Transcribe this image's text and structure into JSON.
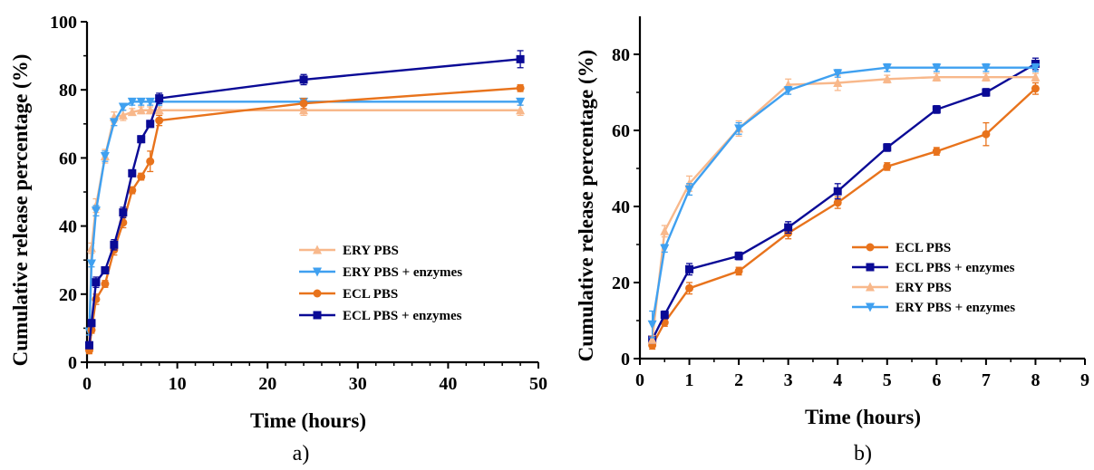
{
  "chart_data": [
    {
      "type": "line",
      "panel_label": "a)",
      "xlabel": "Time (hours)",
      "ylabel": "Cumulative release percentage (%)",
      "xlim": [
        0,
        50
      ],
      "ylim": [
        0,
        100
      ],
      "xticks": [
        0,
        10,
        20,
        30,
        40,
        50
      ],
      "yticks": [
        0,
        20,
        40,
        60,
        80,
        100
      ],
      "grid": false,
      "legend_position": "lower-right",
      "series": [
        {
          "name": "ERY PBS",
          "color": "#f8b88b",
          "marker": "triangle-up",
          "x": [
            0.25,
            0.5,
            1,
            2,
            3,
            4,
            5,
            6,
            7,
            8,
            24,
            48
          ],
          "y": [
            5,
            33.5,
            46,
            60.5,
            72,
            72.5,
            73.5,
            74,
            74,
            74,
            74,
            74
          ],
          "err": [
            1,
            1.5,
            2,
            2,
            1.5,
            1.5,
            1,
            1,
            1,
            1,
            1.5,
            1.5
          ]
        },
        {
          "name": "ERY PBS + enzymes",
          "color": "#3fa0f0",
          "marker": "triangle-down",
          "x": [
            0.25,
            0.5,
            1,
            2,
            3,
            4,
            5,
            6,
            7,
            8,
            24,
            48
          ],
          "y": [
            9,
            29,
            44.5,
            60.5,
            70.5,
            75,
            76.5,
            76.5,
            76.5,
            76.5,
            76.5,
            76.5
          ],
          "err": [
            1,
            1,
            1.5,
            1.5,
            1,
            1,
            1,
            1,
            1,
            1,
            1,
            1
          ]
        },
        {
          "name": "ECL PBS",
          "color": "#e8731c",
          "marker": "circle",
          "x": [
            0.25,
            0.5,
            1,
            2,
            3,
            4,
            5,
            6,
            7,
            8,
            24,
            48
          ],
          "y": [
            3.5,
            9.5,
            18.5,
            23,
            33,
            41,
            50.5,
            54.5,
            59,
            71,
            76,
            80.5
          ],
          "err": [
            1,
            1,
            1.5,
            1,
            1.5,
            1.5,
            1,
            1,
            3,
            1.5,
            1.5,
            1
          ]
        },
        {
          "name": "ECL PBS + enzymes",
          "color": "#0a0a96",
          "marker": "square",
          "x": [
            0.25,
            0.5,
            1,
            2,
            3,
            4,
            5,
            6,
            7,
            8,
            24,
            48
          ],
          "y": [
            5,
            11.5,
            23.5,
            27,
            34.5,
            44,
            55.5,
            65.5,
            70,
            77.5,
            83,
            89
          ],
          "err": [
            1,
            1,
            1.5,
            1,
            1.5,
            1.5,
            1,
            1,
            1,
            1.5,
            1.5,
            2.5
          ]
        }
      ]
    },
    {
      "type": "line",
      "panel_label": "b)",
      "xlabel": "Time (hours)",
      "ylabel": "Cumulative release percentage (%)",
      "xlim": [
        0,
        9
      ],
      "ylim": [
        0,
        90
      ],
      "xticks": [
        0,
        1,
        2,
        3,
        4,
        5,
        6,
        7,
        8,
        9
      ],
      "yticks": [
        0,
        20,
        40,
        60,
        80
      ],
      "grid": false,
      "legend_position": "lower-right",
      "series": [
        {
          "name": "ECL PBS",
          "color": "#e8731c",
          "marker": "circle",
          "x": [
            0.25,
            0.5,
            1,
            2,
            3,
            4,
            5,
            6,
            7,
            8
          ],
          "y": [
            3.5,
            9.5,
            18.5,
            23,
            33,
            41,
            50.5,
            54.5,
            59,
            71
          ],
          "err": [
            1,
            1,
            1.5,
            1,
            1.5,
            1.5,
            1,
            1,
            3,
            1.5
          ]
        },
        {
          "name": "ECL PBS + enzymes",
          "color": "#0a0a96",
          "marker": "square",
          "x": [
            0.25,
            0.5,
            1,
            2,
            3,
            4,
            5,
            6,
            7,
            8
          ],
          "y": [
            5,
            11.5,
            23.5,
            27,
            34.5,
            44,
            55.5,
            65.5,
            70,
            77.5
          ],
          "err": [
            1,
            1,
            1.5,
            1,
            1.5,
            2,
            1,
            1,
            1,
            1.5
          ]
        },
        {
          "name": "ERY PBS",
          "color": "#f8b88b",
          "marker": "triangle-up",
          "x": [
            0.25,
            0.5,
            1,
            2,
            3,
            4,
            5,
            6,
            7,
            8
          ],
          "y": [
            5,
            33.5,
            46,
            60.5,
            72,
            72.5,
            73.5,
            74,
            74,
            74
          ],
          "err": [
            1,
            1.5,
            2,
            2,
            1.5,
            2,
            1,
            1,
            1,
            1
          ]
        },
        {
          "name": "ERY PBS + enzymes",
          "color": "#3fa0f0",
          "marker": "triangle-down",
          "x": [
            0.25,
            0.5,
            1,
            2,
            3,
            4,
            5,
            6,
            7,
            8
          ],
          "y": [
            9,
            29,
            44.5,
            60.5,
            70.5,
            75,
            76.5,
            76.5,
            76.5,
            76.5
          ],
          "err": [
            3.5,
            1,
            1.5,
            1.5,
            1,
            1,
            1,
            1,
            1,
            1
          ]
        }
      ]
    }
  ]
}
